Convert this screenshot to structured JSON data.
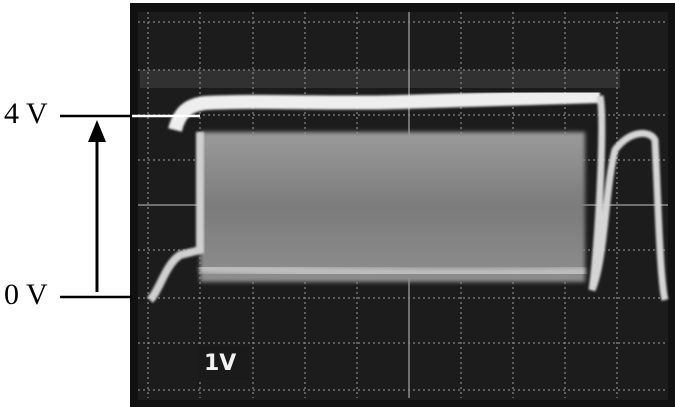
{
  "labels": {
    "top": "4 V",
    "bottom": "0 V"
  },
  "screen": {
    "scale": "1V"
  }
}
